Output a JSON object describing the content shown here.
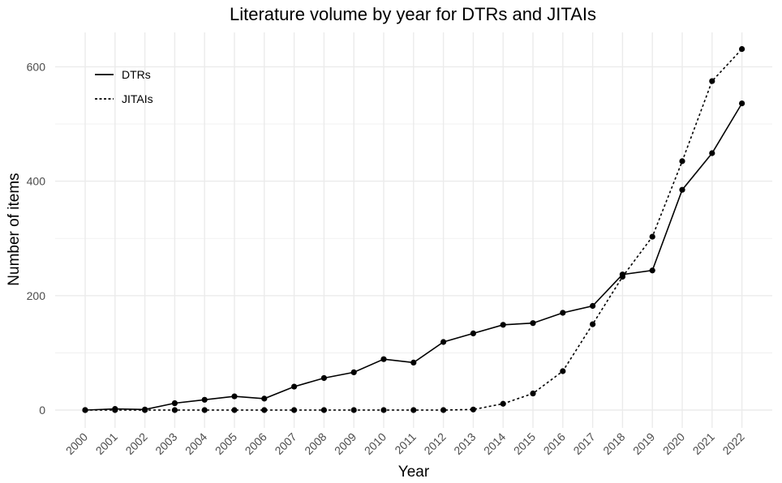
{
  "chart_data": {
    "type": "line",
    "title": "Literature volume by year for DTRs and JITAIs",
    "xlabel": "Year",
    "ylabel": "Number of items",
    "x": [
      2000,
      2001,
      2002,
      2003,
      2004,
      2005,
      2006,
      2007,
      2008,
      2009,
      2010,
      2011,
      2012,
      2013,
      2014,
      2015,
      2016,
      2017,
      2018,
      2019,
      2020,
      2021,
      2022
    ],
    "xtick_labels": [
      "2000",
      "2001",
      "2002",
      "2003",
      "2004",
      "2005",
      "2006",
      "2007",
      "2008",
      "2009",
      "2010",
      "2011",
      "2012",
      "2013",
      "2014",
      "2015",
      "2016",
      "2017",
      "2018",
      "2019",
      "2020",
      "2021",
      "2022"
    ],
    "yticks": [
      0,
      200,
      400,
      600
    ],
    "ytick_labels": [
      "0",
      "200",
      "400",
      "600"
    ],
    "ylim": [
      -30,
      650
    ],
    "grid": true,
    "legend_position": "top-left",
    "series": [
      {
        "name": "DTRs",
        "line_style": "solid",
        "color": "#000000",
        "values": [
          0,
          2,
          1,
          12,
          18,
          24,
          20,
          41,
          56,
          66,
          89,
          83,
          119,
          134,
          149,
          152,
          170,
          182,
          237,
          244,
          385,
          449,
          536
        ]
      },
      {
        "name": "JITAIs",
        "line_style": "dotted",
        "color": "#000000",
        "values": [
          0,
          0,
          0,
          0,
          0,
          0,
          0,
          0,
          0,
          0,
          0,
          0,
          0,
          1,
          11,
          29,
          68,
          150,
          233,
          303,
          435,
          575,
          631
        ]
      }
    ]
  }
}
